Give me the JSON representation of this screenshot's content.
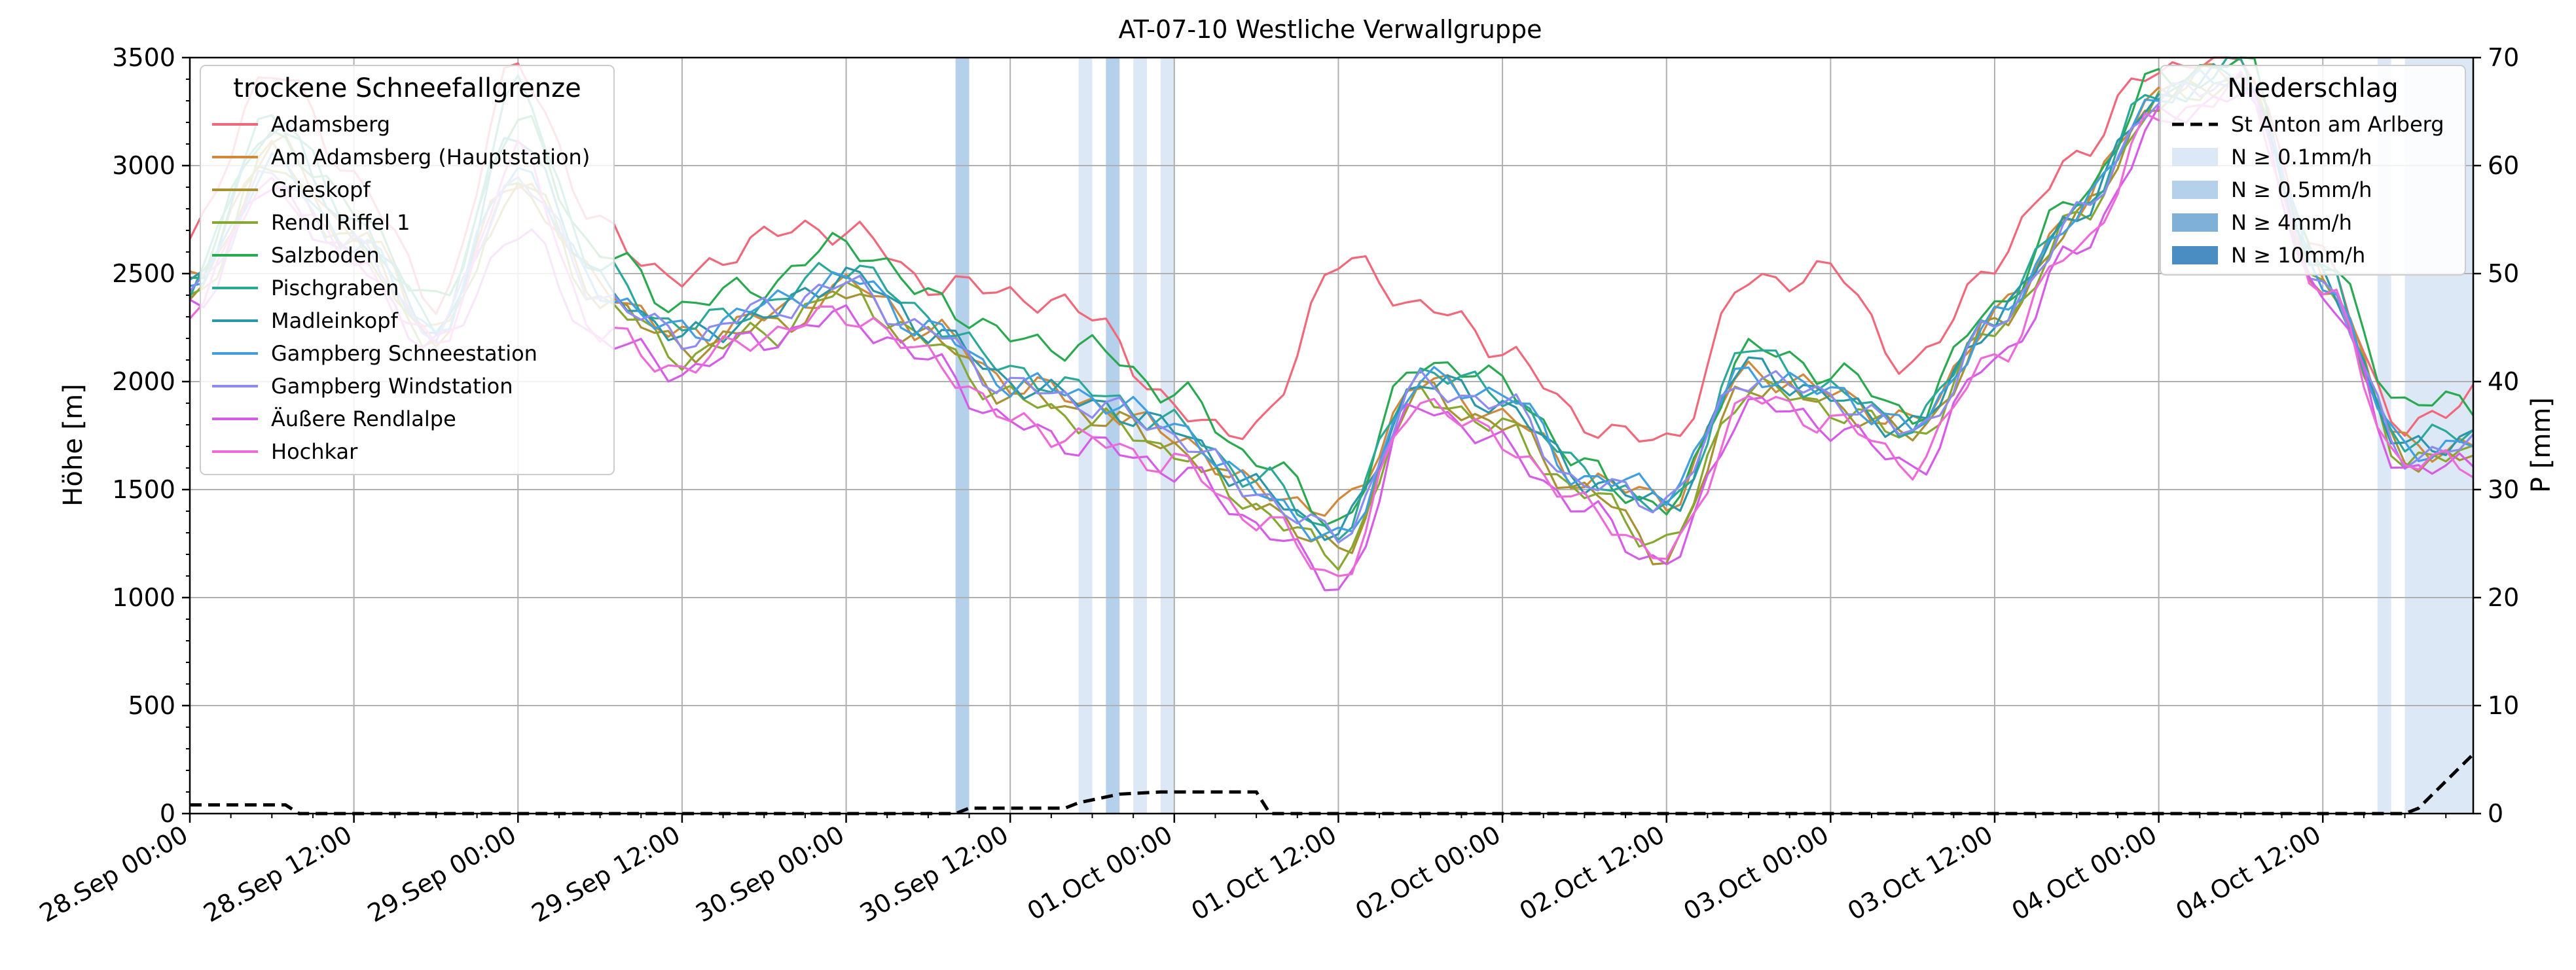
{
  "chart_data": {
    "type": "line",
    "title": "AT-07-10 Westliche Verwallgruppe",
    "ylabel": "Höhe [m]",
    "ylabel_right": "P [mm]",
    "ylim": [
      0,
      3500
    ],
    "ylim_right": [
      0,
      70
    ],
    "yticks": [
      0,
      500,
      1000,
      1500,
      2000,
      2500,
      3000,
      3500
    ],
    "yticks_right": [
      0,
      10,
      20,
      30,
      40,
      50,
      60,
      70
    ],
    "x_range_hours": [
      0,
      167
    ],
    "xtick_labels": [
      "28.Sep 00:00",
      "28.Sep 12:00",
      "29.Sep 00:00",
      "29.Sep 12:00",
      "30.Sep 00:00",
      "30.Sep 12:00",
      "01.Oct 00:00",
      "01.Oct 12:00",
      "02.Oct 00:00",
      "02.Oct 12:00",
      "03.Oct 00:00",
      "03.Oct 12:00",
      "04.Oct 00:00",
      "04.Oct 12:00"
    ],
    "grid": true,
    "legend_left": {
      "title": "trockene Schneefallgrenze",
      "placement": "upper-left"
    },
    "legend_right": {
      "title": "Niederschlag",
      "placement": "upper-right",
      "line_entry": "St Anton am Arlberg",
      "band_entries": [
        {
          "label": "N ≥ 0.1mm/h",
          "color": "#dce8f5"
        },
        {
          "label": "N ≥ 0.5mm/h",
          "color": "#b5d0ea"
        },
        {
          "label": "N ≥ 4mm/h",
          "color": "#7fb1d8"
        },
        {
          "label": "N ≥ 10mm/h",
          "color": "#4a8dc2"
        }
      ]
    },
    "anchor_hours": [
      0,
      6,
      12,
      18,
      24,
      30,
      36,
      42,
      48,
      54,
      60,
      66,
      72,
      78,
      84,
      90,
      96,
      102,
      108,
      114,
      120,
      126,
      132,
      138,
      144,
      150,
      156,
      162,
      167
    ],
    "series": [
      {
        "name": "Adamsberg",
        "color": "#f0687a",
        "offset": 60,
        "values": [
          2600,
          3400,
          2900,
          2300,
          3400,
          2650,
          2400,
          2620,
          2650,
          2400,
          2350,
          2250,
          1800,
          1700,
          2500,
          2300,
          2100,
          1750,
          1650,
          2400,
          2450,
          2000,
          2500,
          3000,
          3400,
          3450,
          2500,
          1700,
          1900
        ]
      },
      {
        "name": "Am Adamsberg (Hauptstation)",
        "color": "#d2883a",
        "offset": 0,
        "values": [
          2450,
          3100,
          2700,
          2250,
          2950,
          2450,
          2200,
          2300,
          2450,
          2250,
          2000,
          1900,
          1750,
          1500,
          1400,
          2000,
          1850,
          1550,
          1450,
          2050,
          1950,
          1800,
          2300,
          2800,
          3350,
          3450,
          2500,
          1700,
          1700
        ]
      },
      {
        "name": "Grieskopf",
        "color": "#a89130",
        "offset": 0,
        "values": [
          2400,
          3050,
          2650,
          2200,
          2900,
          2400,
          2150,
          2250,
          2400,
          2200,
          1950,
          1850,
          1700,
          1450,
          1200,
          1950,
          1800,
          1500,
          1200,
          2000,
          1900,
          1750,
          2250,
          2750,
          3300,
          3400,
          2450,
          1650,
          1650
        ]
      },
      {
        "name": "Rendl Riffel 1",
        "color": "#86a830",
        "offset": 0,
        "values": [
          2380,
          3000,
          2620,
          2180,
          2950,
          2380,
          2120,
          2220,
          2420,
          2180,
          1920,
          1820,
          1690,
          1420,
          1180,
          1950,
          1780,
          1480,
          1250,
          1980,
          1880,
          1740,
          2240,
          2740,
          3300,
          3400,
          2450,
          1650,
          1650
        ]
      },
      {
        "name": "Salzboden",
        "color": "#2aaa50",
        "offset": 0,
        "values": [
          2500,
          3150,
          2800,
          2350,
          3200,
          2600,
          2350,
          2450,
          2650,
          2400,
          2200,
          2150,
          1950,
          1650,
          1350,
          2100,
          2000,
          1600,
          1400,
          2150,
          2050,
          1850,
          2350,
          2850,
          3400,
          3500,
          2550,
          1900,
          1900
        ]
      },
      {
        "name": "Pischgraben",
        "color": "#2aa898",
        "offset": 0,
        "values": [
          2450,
          3250,
          2750,
          2250,
          3350,
          2500,
          2250,
          2350,
          2550,
          2300,
          2050,
          1950,
          1800,
          1550,
          1300,
          2050,
          1950,
          1580,
          1400,
          2150,
          1950,
          1800,
          2300,
          2800,
          3350,
          3450,
          2500,
          1700,
          1800
        ]
      },
      {
        "name": "Madleinkopf",
        "color": "#2a97a8",
        "offset": 0,
        "values": [
          2420,
          3200,
          2700,
          2230,
          3150,
          2450,
          2200,
          2300,
          2500,
          2250,
          2000,
          1900,
          1780,
          1500,
          1300,
          2000,
          1900,
          1550,
          1420,
          2080,
          1920,
          1780,
          2280,
          2780,
          3320,
          3420,
          2480,
          1680,
          1750
        ]
      },
      {
        "name": "Gampberg Schneestation",
        "color": "#3f9fe0",
        "offset": 0,
        "values": [
          2430,
          3000,
          2650,
          2240,
          3000,
          2420,
          2220,
          2350,
          2480,
          2250,
          2000,
          1930,
          1800,
          1500,
          1250,
          2000,
          1950,
          1550,
          1500,
          2050,
          1950,
          1780,
          2280,
          2780,
          3330,
          3420,
          2480,
          1680,
          1720
        ]
      },
      {
        "name": "Gampberg Windstation",
        "color": "#8d8af2",
        "offset": 0,
        "values": [
          2420,
          2950,
          2620,
          2230,
          2950,
          2400,
          2200,
          2330,
          2450,
          2230,
          1980,
          1900,
          1760,
          1480,
          1280,
          1980,
          1900,
          1520,
          1450,
          2030,
          1930,
          1760,
          2260,
          2760,
          3310,
          3400,
          2460,
          1660,
          1700
        ]
      },
      {
        "name": "Äußere Rendlalpe",
        "color": "#d65ce8",
        "offset": 0,
        "values": [
          2350,
          2900,
          2550,
          2150,
          2700,
          2200,
          2050,
          2200,
          2300,
          2100,
          1800,
          1700,
          1600,
          1350,
          1050,
          1900,
          1700,
          1400,
          1150,
          1900,
          1800,
          1600,
          2100,
          2600,
          3200,
          3350,
          2400,
          1600,
          1600
        ]
      },
      {
        "name": "Hochkar",
        "color": "#ee6ad8",
        "offset": 0,
        "values": [
          2360,
          2920,
          2560,
          2160,
          3050,
          2220,
          2060,
          2220,
          2320,
          2120,
          1820,
          1720,
          1620,
          1370,
          1100,
          1920,
          1720,
          1420,
          1180,
          1920,
          1820,
          1620,
          2120,
          2620,
          3220,
          3360,
          2420,
          1620,
          1620
        ]
      }
    ],
    "precip_line": {
      "name": "St Anton am Arlberg",
      "x_hours": [
        0,
        7,
        8,
        56,
        57,
        64,
        65,
        68,
        71,
        78,
        79,
        162,
        163,
        165,
        167
      ],
      "values_mm": [
        0.8,
        0.8,
        0.0,
        0.0,
        0.5,
        0.5,
        1.0,
        1.8,
        2.0,
        2.0,
        0.0,
        0.0,
        0.5,
        3.0,
        5.5
      ]
    },
    "precip_bands": [
      {
        "from_hours": 56.0,
        "to_hours": 57.0,
        "level": 1
      },
      {
        "from_hours": 65.0,
        "to_hours": 66.0,
        "level": 0
      },
      {
        "from_hours": 67.0,
        "to_hours": 68.0,
        "level": 1
      },
      {
        "from_hours": 69.0,
        "to_hours": 70.0,
        "level": 0
      },
      {
        "from_hours": 71.0,
        "to_hours": 72.0,
        "level": 0
      },
      {
        "from_hours": 160.0,
        "to_hours": 161.0,
        "level": 0
      },
      {
        "from_hours": 162.0,
        "to_hours": 167.0,
        "level": 0
      }
    ]
  }
}
